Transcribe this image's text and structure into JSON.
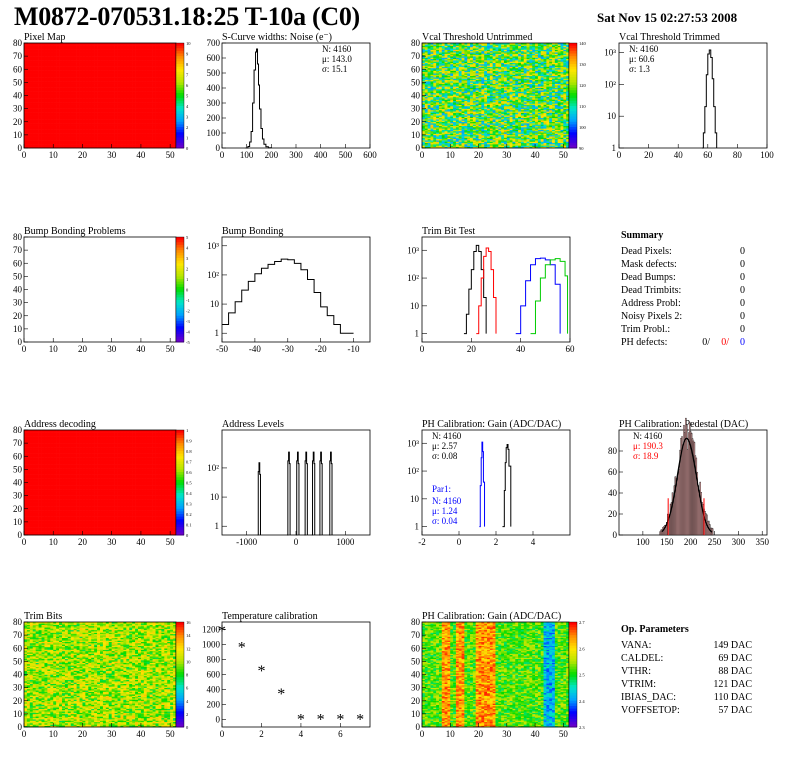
{
  "page": {
    "title": "M0872-070531.18:25 T-10a (C0)",
    "date": "Sat Nov 15 02:27:53 2008"
  },
  "colors": {
    "pixel_map_fill": "#ff0000",
    "black_series": "#000000",
    "red_series": "#ff0000",
    "blue_series": "#0000ff",
    "green_series": "#00cc00"
  },
  "chart_data": [
    {
      "id": "pixel_map",
      "type": "heatmap",
      "title": "Pixel Map",
      "xlim": [
        0,
        52
      ],
      "ylim": [
        0,
        80
      ],
      "xticks": [
        0,
        10,
        20,
        30,
        40,
        50
      ],
      "yticks": [
        0,
        10,
        20,
        30,
        40,
        50,
        60,
        70,
        80
      ],
      "uniform_value": 10,
      "zlim": [
        0,
        10
      ],
      "palette_labels": [
        "10",
        "9",
        "8",
        "7",
        "6",
        "5",
        "4",
        "3",
        "2",
        "1",
        "0"
      ]
    },
    {
      "id": "scurve",
      "type": "line",
      "title": "S-Curve widths: Noise (e⁻)",
      "xlim": [
        0,
        600
      ],
      "ylim": [
        0,
        700
      ],
      "xticks": [
        0,
        100,
        200,
        300,
        400,
        500,
        600
      ],
      "yticks": [
        0,
        100,
        200,
        300,
        400,
        500,
        600,
        700
      ],
      "stats": [
        "N: 4160",
        "μ: 143.0",
        "σ: 15.1"
      ],
      "series": [
        {
          "color": "#000000",
          "x": [
            95,
            105,
            112,
            118,
            124,
            130,
            136,
            140,
            144,
            148,
            152,
            158,
            164,
            170,
            178,
            188,
            200
          ],
          "y": [
            0,
            10,
            40,
            110,
            300,
            520,
            640,
            660,
            560,
            420,
            260,
            130,
            60,
            25,
            8,
            2,
            0
          ]
        }
      ]
    },
    {
      "id": "vcal_untrimmed",
      "type": "heatmap",
      "title": "Vcal Threshold Untrimmed",
      "xlim": [
        0,
        52
      ],
      "ylim": [
        0,
        80
      ],
      "xticks": [
        0,
        10,
        20,
        30,
        40,
        50
      ],
      "yticks": [
        0,
        10,
        20,
        30,
        40,
        50,
        60,
        70,
        80
      ],
      "palette_labels": [
        "140",
        "130",
        "120",
        "110",
        "100",
        "90"
      ]
    },
    {
      "id": "vcal_trimmed",
      "type": "line",
      "title": "Vcal Threshold Trimmed",
      "log_y": true,
      "xlim": [
        0,
        100
      ],
      "ylim": [
        1,
        2000
      ],
      "xticks": [
        0,
        20,
        40,
        60,
        80,
        100
      ],
      "yticks_log": [
        "1",
        "10",
        "10²",
        "10³"
      ],
      "stats": [
        "N: 4160",
        "μ: 60.6",
        "σ: 1.3"
      ],
      "series": [
        {
          "color": "#000000",
          "x": [
            56,
            57,
            58,
            59,
            60,
            61,
            62,
            63,
            64,
            65,
            66
          ],
          "y": [
            1,
            3,
            20,
            200,
            900,
            1200,
            700,
            150,
            20,
            3,
            1
          ]
        }
      ]
    },
    {
      "id": "bump_problems",
      "type": "heatmap",
      "title": "Bump Bonding Problems",
      "xlim": [
        0,
        52
      ],
      "ylim": [
        0,
        80
      ],
      "xticks": [
        0,
        10,
        20,
        30,
        40,
        50
      ],
      "yticks": [
        0,
        10,
        20,
        30,
        40,
        50,
        60,
        70,
        80
      ],
      "empty": true,
      "palette_labels": [
        "5",
        "4",
        "3",
        "2",
        "1",
        "0",
        "-1",
        "-2",
        "-3",
        "-4",
        "-5"
      ]
    },
    {
      "id": "bump_bonding",
      "type": "line",
      "title": "Bump Bonding",
      "log_y": true,
      "xlim": [
        -50,
        -5
      ],
      "ylim": [
        0.5,
        2000
      ],
      "xticks": [
        -50,
        -40,
        -30,
        -20,
        -10
      ],
      "yticks_log": [
        "1",
        "10",
        "10²",
        "10³"
      ],
      "series": [
        {
          "color": "#000000",
          "x": [
            -50,
            -48,
            -46,
            -44,
            -42,
            -40,
            -38,
            -36,
            -34,
            -32,
            -30,
            -28,
            -26,
            -24,
            -22,
            -20,
            -18,
            -16,
            -14,
            -12,
            -10
          ],
          "y": [
            2,
            5,
            12,
            30,
            60,
            110,
            170,
            230,
            290,
            350,
            330,
            250,
            150,
            70,
            25,
            8,
            4,
            2,
            1,
            1,
            1
          ]
        }
      ]
    },
    {
      "id": "trim_bits_test",
      "type": "line",
      "title": "Trim Bit Test",
      "log_y": true,
      "xlim": [
        0,
        60
      ],
      "ylim": [
        0.5,
        3000
      ],
      "xticks": [
        0,
        20,
        40,
        60
      ],
      "yticks_log": [
        "1",
        "10",
        "10²",
        "10³"
      ],
      "series": [
        {
          "color": "#000000",
          "x": [
            17,
            18,
            19,
            20,
            21,
            22,
            23,
            24,
            25,
            26
          ],
          "y": [
            1,
            5,
            40,
            200,
            900,
            1500,
            900,
            200,
            20,
            1
          ]
        },
        {
          "color": "#ff0000",
          "x": [
            22,
            23,
            24,
            25,
            26,
            27,
            28,
            29,
            30
          ],
          "y": [
            1,
            10,
            100,
            600,
            1200,
            900,
            200,
            20,
            1
          ]
        },
        {
          "color": "#0000ff",
          "x": [
            38,
            40,
            42,
            44,
            46,
            48,
            50,
            52,
            54,
            56
          ],
          "y": [
            1,
            10,
            80,
            300,
            500,
            520,
            450,
            300,
            60,
            1
          ]
        },
        {
          "color": "#00cc00",
          "x": [
            44,
            46,
            48,
            50,
            52,
            54,
            56,
            58,
            59
          ],
          "y": [
            1,
            15,
            100,
            300,
            450,
            500,
            400,
            120,
            1
          ]
        }
      ]
    },
    {
      "id": "address_decoding",
      "type": "heatmap",
      "title": "Address decoding",
      "xlim": [
        0,
        52
      ],
      "ylim": [
        0,
        80
      ],
      "xticks": [
        0,
        10,
        20,
        30,
        40,
        50
      ],
      "yticks": [
        0,
        10,
        20,
        30,
        40,
        50,
        60,
        70,
        80
      ],
      "uniform_value": 1,
      "zlim": [
        0,
        1
      ],
      "palette_labels": [
        "1",
        "0.9",
        "0.8",
        "0.7",
        "0.6",
        "0.5",
        "0.4",
        "0.3",
        "0.2",
        "0.1",
        "0"
      ]
    },
    {
      "id": "address_levels",
      "type": "line",
      "title": "Address Levels",
      "log_y": true,
      "xlim": [
        -1500,
        1500
      ],
      "ylim": [
        0.5,
        2000
      ],
      "xticks": [
        -1000,
        0,
        1000
      ],
      "yticks_log": [
        "1",
        "10",
        "10²"
      ],
      "peaks_x": [
        -750,
        -150,
        30,
        200,
        350,
        500,
        700
      ],
      "peaks_y": [
        150,
        350,
        350,
        350,
        350,
        350,
        350
      ]
    },
    {
      "id": "ph_gain",
      "type": "line",
      "title": "PH Calibration: Gain (ADC/DAC)",
      "log_y": true,
      "xlim": [
        -2,
        6
      ],
      "ylim": [
        0.5,
        3000
      ],
      "xticks": [
        -2,
        0,
        2,
        4
      ],
      "yticks_log": [
        "1",
        "10",
        "10²",
        "10³"
      ],
      "stats": [
        "N: 4160",
        "μ: 2.57",
        "σ: 0.08"
      ],
      "stats2_title": "Par1:",
      "stats2": [
        "N: 4160",
        "μ: 1.24",
        "σ: 0.04"
      ],
      "series": [
        {
          "color": "#000000",
          "x": [
            2.35,
            2.45,
            2.5,
            2.55,
            2.6,
            2.65,
            2.7,
            2.8
          ],
          "y": [
            1,
            20,
            200,
            700,
            900,
            600,
            150,
            1
          ]
        },
        {
          "color": "#0000ff",
          "x": [
            1.1,
            1.15,
            1.2,
            1.24,
            1.28,
            1.32,
            1.38
          ],
          "y": [
            1,
            30,
            300,
            1100,
            500,
            40,
            1
          ]
        }
      ]
    },
    {
      "id": "ph_pedestal",
      "type": "bar",
      "title": "PH Calibration: Pedestal (DAC)",
      "xlim": [
        50,
        360
      ],
      "ylim": [
        0,
        100
      ],
      "xticks": [
        100,
        150,
        200,
        250,
        300,
        350
      ],
      "yticks": [
        0,
        20,
        40,
        60,
        80
      ],
      "stats": [
        "N: 4160",
        "μ: 190.3",
        "σ: 18.9"
      ],
      "red_lines_x": [
        153,
        228
      ]
    },
    {
      "id": "trim_bits",
      "type": "heatmap",
      "title": "Trim Bits",
      "xlim": [
        0,
        52
      ],
      "ylim": [
        0,
        80
      ],
      "xticks": [
        0,
        10,
        20,
        30,
        40,
        50
      ],
      "yticks": [
        0,
        10,
        20,
        30,
        40,
        50,
        60,
        70,
        80
      ],
      "palette_labels": [
        "16",
        "14",
        "12",
        "10",
        "8",
        "6",
        "4",
        "2",
        "0"
      ]
    },
    {
      "id": "temperature",
      "type": "scatter",
      "title": "Temperature calibration",
      "xlim": [
        0,
        7.5
      ],
      "ylim": [
        -100,
        1300
      ],
      "xticks": [
        0,
        2,
        4,
        6
      ],
      "yticks": [
        0,
        200,
        400,
        600,
        800,
        1000,
        1200
      ],
      "x": [
        0,
        1,
        2,
        3,
        4,
        5,
        6,
        7
      ],
      "y": [
        1180,
        960,
        650,
        340,
        0,
        0,
        0,
        0
      ]
    },
    {
      "id": "ph_gain_map",
      "type": "heatmap",
      "title": "PH Calibration: Gain (ADC/DAC)",
      "xlim": [
        0,
        52
      ],
      "ylim": [
        0,
        80
      ],
      "xticks": [
        0,
        10,
        20,
        30,
        40,
        50
      ],
      "yticks": [
        0,
        10,
        20,
        30,
        40,
        50,
        60,
        70,
        80
      ],
      "palette_labels": [
        "2.7",
        "2.6",
        "2.5",
        "2.4",
        "2.3"
      ]
    }
  ],
  "summary": {
    "title": "Summary",
    "rows": [
      {
        "label": "Dead Pixels:",
        "value": "0"
      },
      {
        "label": "Mask defects:",
        "value": "0"
      },
      {
        "label": "Dead Bumps:",
        "value": "0"
      },
      {
        "label": "Dead Trimbits:",
        "value": "0"
      },
      {
        "label": "Address Probl:",
        "value": "0"
      },
      {
        "label": "Noisy Pixels 2:",
        "value": "0"
      },
      {
        "label": "Trim Probl.:",
        "value": "0"
      }
    ],
    "ph_defects": {
      "label": "PH defects:",
      "v1": "0/",
      "v2": "0/",
      "v3": "0"
    }
  },
  "op_params": {
    "title": "Op. Parameters",
    "rows": [
      {
        "label": "VANA:",
        "value": "149 DAC"
      },
      {
        "label": "CALDEL:",
        "value": "69 DAC"
      },
      {
        "label": "VTHR:",
        "value": "88 DAC"
      },
      {
        "label": "VTRIM:",
        "value": "121 DAC"
      },
      {
        "label": "IBIAS_DAC:",
        "value": "110 DAC"
      },
      {
        "label": "VOFFSETOP:",
        "value": "57 DAC"
      }
    ]
  }
}
